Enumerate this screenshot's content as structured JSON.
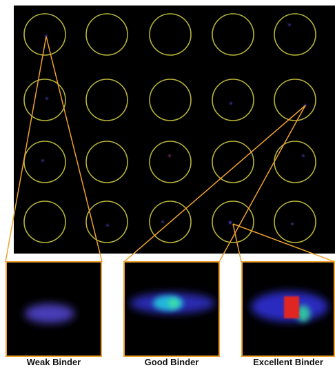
{
  "panels": [
    {
      "label": "Weak Binder"
    },
    {
      "label": "Good Binder"
    },
    {
      "label": "Excellent Binder"
    }
  ]
}
